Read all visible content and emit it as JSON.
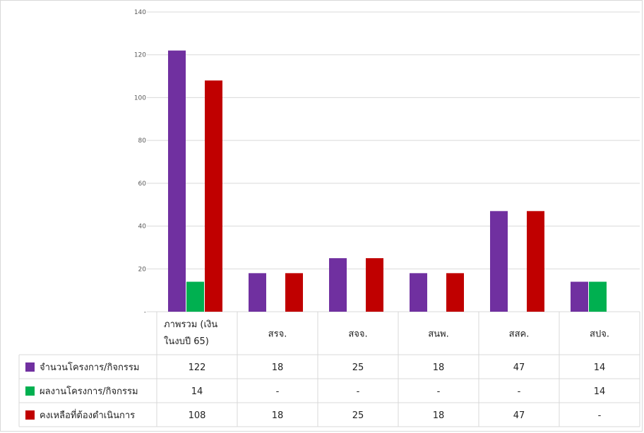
{
  "chart_data": {
    "type": "bar",
    "categories": [
      "ภาพรวม (เงิน ในงบปี 65)",
      "สรจ.",
      "สจจ.",
      "สนพ.",
      "สสค.",
      "สปจ."
    ],
    "category_lines": [
      [
        "ภาพรวม  (เงิน",
        "ในงบปี 65)"
      ],
      [
        "สรจ."
      ],
      [
        "สจจ."
      ],
      [
        "สนพ."
      ],
      [
        "สสค."
      ],
      [
        "สปจ."
      ]
    ],
    "series": [
      {
        "name": "จำนวนโครงการ/กิจกรรม",
        "color": "#7030a0",
        "values": [
          122,
          18,
          25,
          18,
          47,
          14
        ],
        "labels": [
          "122",
          "18",
          "25",
          "18",
          "47",
          "14"
        ]
      },
      {
        "name": "ผลงานโครงการ/กิจกรรม",
        "color": "#00b050",
        "values": [
          14,
          0,
          0,
          0,
          0,
          14
        ],
        "labels": [
          "14",
          "-",
          "-",
          "-",
          "-",
          "14"
        ]
      },
      {
        "name": "คงเหลือที่ต้องดำเนินการ",
        "color": "#c00000",
        "values": [
          108,
          18,
          25,
          18,
          47,
          0
        ],
        "labels": [
          "108",
          "18",
          "25",
          "18",
          "47",
          "-"
        ]
      }
    ],
    "ylim": [
      0,
      140
    ],
    "yticks": [
      "-",
      "20",
      "40",
      "60",
      "80",
      "100",
      "120",
      "140"
    ],
    "grid": true,
    "legend": "data-table"
  }
}
